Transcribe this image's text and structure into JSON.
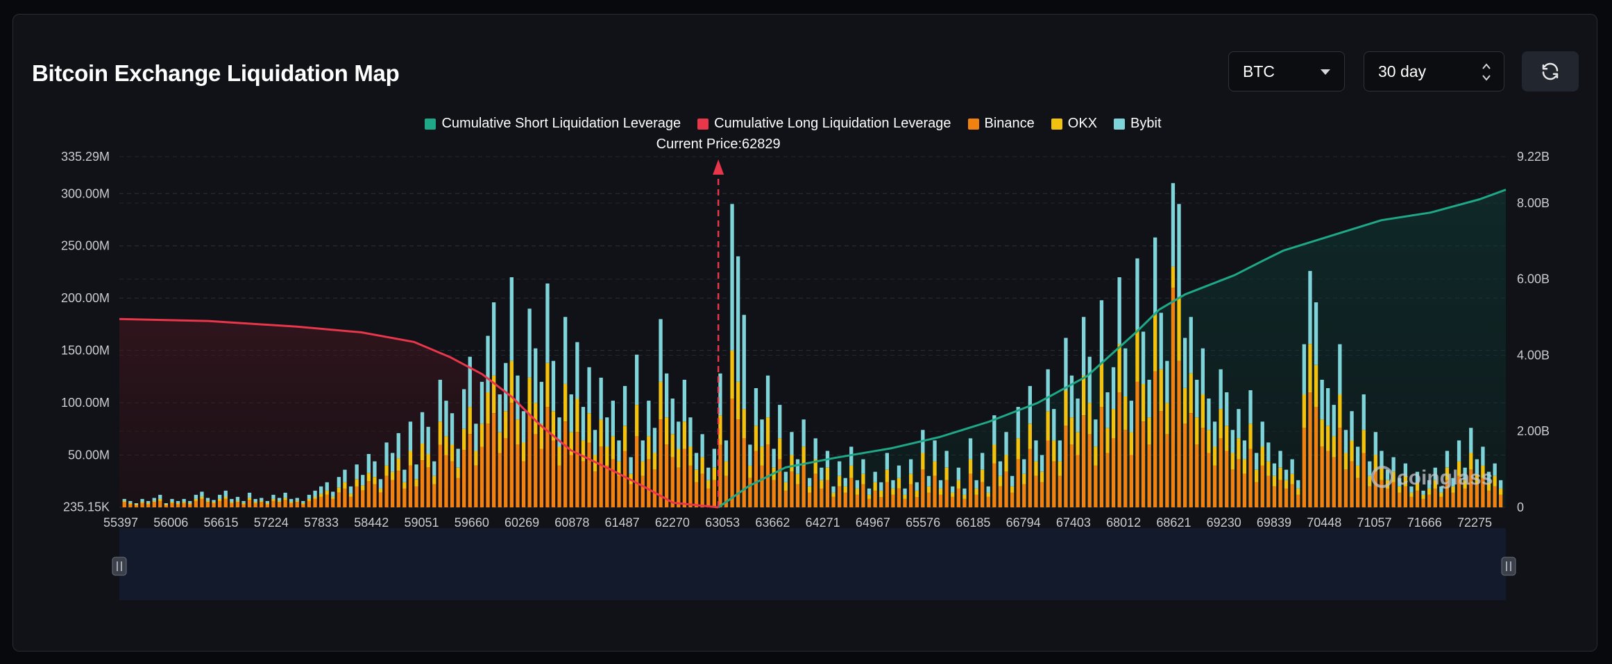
{
  "header": {
    "title": "Bitcoin Exchange Liquidation Map",
    "coin_select": "BTC",
    "range_select": "30 day"
  },
  "watermark": "coinglass",
  "colors": {
    "background": "#07090d",
    "card": "#101217",
    "short_line": "#1fa887",
    "long_line": "#e8364a",
    "binance": "#f2820f",
    "okx": "#f2c20f",
    "bybit": "#7fd4d9"
  },
  "chart_data": {
    "type": "bar",
    "current_price_label": "Current Price:62829",
    "current_price": 62829,
    "legend": [
      {
        "name": "Cumulative Short Liquidation Leverage",
        "color": "#1fa887"
      },
      {
        "name": "Cumulative Long Liquidation Leverage",
        "color": "#e8364a"
      },
      {
        "name": "Binance",
        "color": "#f2820f"
      },
      {
        "name": "OKX",
        "color": "#f2c20f"
      },
      {
        "name": "Bybit",
        "color": "#7fd4d9"
      }
    ],
    "x_tick_labels": [
      "55397",
      "56006",
      "56615",
      "57224",
      "57833",
      "58442",
      "59051",
      "59660",
      "60269",
      "60878",
      "61487",
      "62270",
      "63053",
      "63662",
      "64271",
      "64967",
      "65576",
      "66185",
      "66794",
      "67403",
      "68012",
      "68621",
      "69230",
      "69839",
      "70448",
      "71057",
      "71666",
      "72275"
    ],
    "x_range": [
      55397,
      72600
    ],
    "left_axis": {
      "labels": [
        "335.29M",
        "300.00M",
        "250.00M",
        "200.00M",
        "150.00M",
        "100.00M",
        "50.00M",
        "235.15K"
      ],
      "values": [
        335.29,
        300,
        250,
        200,
        150,
        100,
        50,
        0.235
      ],
      "unit": "M",
      "range": [
        0.235,
        335.29
      ]
    },
    "right_axis": {
      "labels": [
        "9.22B",
        "8.00B",
        "6.00B",
        "4.00B",
        "2.00B",
        "0"
      ],
      "values": [
        9.22,
        8,
        6,
        4,
        2,
        0
      ],
      "unit": "B",
      "range": [
        0,
        9.22
      ]
    },
    "series": [
      {
        "name": "Binance",
        "values": [
          5,
          3,
          2,
          4,
          3,
          5,
          6,
          2,
          4,
          3,
          4,
          3,
          6,
          8,
          5,
          4,
          6,
          8,
          4,
          5,
          3,
          7,
          4,
          5,
          3,
          6,
          5,
          7,
          4,
          5,
          3,
          6,
          8,
          10,
          12,
          8,
          14,
          18,
          10,
          20,
          16,
          25,
          22,
          14,
          30,
          26,
          35,
          18,
          40,
          20,
          45,
          38,
          22,
          60,
          50,
          44,
          28,
          55,
          70,
          40,
          58,
          80,
          90,
          52,
          66,
          100,
          60,
          44,
          88,
          70,
          56,
          96,
          64,
          40,
          82,
          50,
          72,
          44,
          62,
          34,
          58,
          40,
          46,
          30,
          54,
          22,
          68,
          30,
          46,
          36,
          84,
          60,
          48,
          38,
          56,
          40,
          24,
          32,
          18,
          26,
          60,
          30,
          104,
          84,
          66,
          28,
          54,
          40,
          60,
          26,
          46,
          16,
          34,
          22,
          40,
          14,
          32,
          18,
          26,
          10,
          20,
          14,
          28,
          12,
          22,
          8,
          16,
          10,
          24,
          12,
          18,
          8,
          22,
          10,
          36,
          14,
          30,
          12,
          26,
          10,
          18,
          8,
          32,
          12,
          24,
          10,
          42,
          20,
          34,
          14,
          46,
          22,
          56,
          30,
          24,
          64,
          44,
          30,
          78,
          60,
          50,
          88,
          70,
          40,
          96,
          52,
          66,
          110,
          74,
          50,
          120,
          82,
          60,
          130,
          92,
          70,
          210,
          140,
          80,
          90,
          60,
          76,
          52,
          40,
          66,
          54,
          36,
          46,
          32,
          56,
          24,
          40,
          30,
          20,
          26,
          18,
          22,
          12,
          76,
          110,
          96,
          58,
          54,
          48,
          76,
          36,
          44,
          28,
          52,
          20,
          34,
          26,
          18,
          24,
          14,
          20,
          10,
          16,
          8,
          12,
          18,
          10,
          26,
          14,
          30,
          18,
          36,
          22,
          28,
          16,
          20,
          12
        ],
        "color": "#f2820f"
      },
      {
        "name": "OKX",
        "values": [
          1,
          1,
          1,
          1,
          1,
          1,
          2,
          1,
          1,
          1,
          1,
          1,
          2,
          2,
          1,
          1,
          2,
          2,
          1,
          1,
          1,
          2,
          1,
          1,
          1,
          2,
          1,
          2,
          1,
          1,
          1,
          2,
          2,
          3,
          4,
          2,
          5,
          6,
          3,
          7,
          5,
          8,
          7,
          4,
          10,
          8,
          12,
          6,
          14,
          7,
          16,
          13,
          8,
          22,
          18,
          16,
          10,
          20,
          26,
          14,
          22,
          30,
          36,
          20,
          26,
          40,
          24,
          18,
          36,
          30,
          24,
          42,
          28,
          18,
          36,
          22,
          32,
          20,
          28,
          16,
          26,
          18,
          22,
          14,
          24,
          10,
          30,
          14,
          22,
          16,
          36,
          26,
          22,
          18,
          26,
          18,
          12,
          16,
          8,
          12,
          28,
          14,
          46,
          36,
          28,
          12,
          24,
          18,
          26,
          12,
          20,
          8,
          16,
          10,
          18,
          6,
          14,
          8,
          12,
          4,
          10,
          6,
          12,
          6,
          10,
          4,
          8,
          6,
          12,
          6,
          10,
          4,
          10,
          6,
          16,
          6,
          14,
          6,
          12,
          4,
          8,
          4,
          14,
          6,
          12,
          4,
          18,
          10,
          16,
          6,
          20,
          10,
          24,
          14,
          10,
          28,
          20,
          14,
          34,
          26,
          22,
          38,
          30,
          18,
          42,
          24,
          28,
          46,
          32,
          22,
          50,
          36,
          26,
          54,
          40,
          30,
          20,
          60,
          34,
          38,
          26,
          32,
          22,
          18,
          28,
          24,
          16,
          20,
          14,
          24,
          12,
          18,
          14,
          10,
          12,
          8,
          10,
          6,
          32,
          46,
          40,
          26,
          24,
          20,
          32,
          16,
          20,
          12,
          22,
          10,
          16,
          12,
          8,
          10,
          6,
          10,
          4,
          8,
          4,
          6,
          8,
          4,
          12,
          6,
          14,
          8,
          16,
          10,
          12,
          8,
          10,
          6
        ],
        "color": "#f2c20f"
      },
      {
        "name": "Bybit",
        "values": [
          2,
          2,
          1,
          3,
          2,
          3,
          4,
          1,
          3,
          2,
          3,
          2,
          4,
          5,
          3,
          2,
          4,
          6,
          3,
          4,
          2,
          5,
          3,
          3,
          2,
          4,
          3,
          5,
          3,
          3,
          2,
          4,
          6,
          7,
          8,
          5,
          10,
          12,
          7,
          14,
          10,
          18,
          15,
          9,
          22,
          18,
          24,
          12,
          28,
          14,
          30,
          26,
          14,
          40,
          34,
          30,
          18,
          38,
          48,
          26,
          40,
          54,
          70,
          36,
          46,
          80,
          42,
          30,
          66,
          52,
          40,
          76,
          48,
          28,
          64,
          36,
          54,
          32,
          44,
          24,
          40,
          28,
          34,
          20,
          38,
          16,
          48,
          20,
          34,
          24,
          60,
          42,
          34,
          26,
          40,
          28,
          16,
          22,
          12,
          18,
          40,
          20,
          140,
          120,
          90,
          20,
          36,
          26,
          40,
          18,
          32,
          10,
          22,
          14,
          26,
          8,
          20,
          12,
          16,
          6,
          14,
          8,
          18,
          8,
          14,
          6,
          10,
          8,
          16,
          8,
          12,
          6,
          14,
          8,
          22,
          10,
          20,
          8,
          16,
          6,
          12,
          6,
          20,
          8,
          16,
          6,
          28,
          14,
          22,
          10,
          30,
          14,
          36,
          20,
          16,
          40,
          30,
          20,
          50,
          40,
          32,
          56,
          44,
          26,
          60,
          34,
          40,
          64,
          46,
          30,
          68,
          50,
          36,
          74,
          54,
          40,
          80,
          90,
          48,
          54,
          36,
          44,
          30,
          24,
          38,
          32,
          22,
          28,
          18,
          32,
          16,
          24,
          18,
          12,
          16,
          10,
          14,
          8,
          48,
          70,
          60,
          38,
          36,
          30,
          48,
          22,
          28,
          18,
          34,
          14,
          22,
          16,
          10,
          14,
          8,
          12,
          6,
          10,
          4,
          8,
          12,
          6,
          16,
          8,
          20,
          12,
          24,
          14,
          18,
          10,
          12,
          8
        ],
        "color": "#7fd4d9"
      }
    ],
    "cumulative_long_B": {
      "x": [
        55397,
        56500,
        57600,
        58400,
        59051,
        59500,
        59900,
        60269,
        60600,
        61000,
        61487,
        61900,
        62270,
        62829
      ],
      "y": [
        4.95,
        4.9,
        4.75,
        4.6,
        4.35,
        3.95,
        3.5,
        2.9,
        2.2,
        1.5,
        1.0,
        0.55,
        0.12,
        0
      ]
    },
    "cumulative_short_B": {
      "x": [
        62829,
        63200,
        63662,
        64271,
        64967,
        65576,
        66185,
        66794,
        67403,
        67800,
        68012,
        68300,
        68621,
        69230,
        69600,
        69839,
        70448,
        71057,
        71666,
        72275,
        72600
      ],
      "y": [
        0,
        0.55,
        1.05,
        1.3,
        1.55,
        1.85,
        2.25,
        2.75,
        3.45,
        4.2,
        4.6,
        5.2,
        5.6,
        6.1,
        6.5,
        6.75,
        7.15,
        7.55,
        7.75,
        8.1,
        8.35
      ]
    }
  }
}
